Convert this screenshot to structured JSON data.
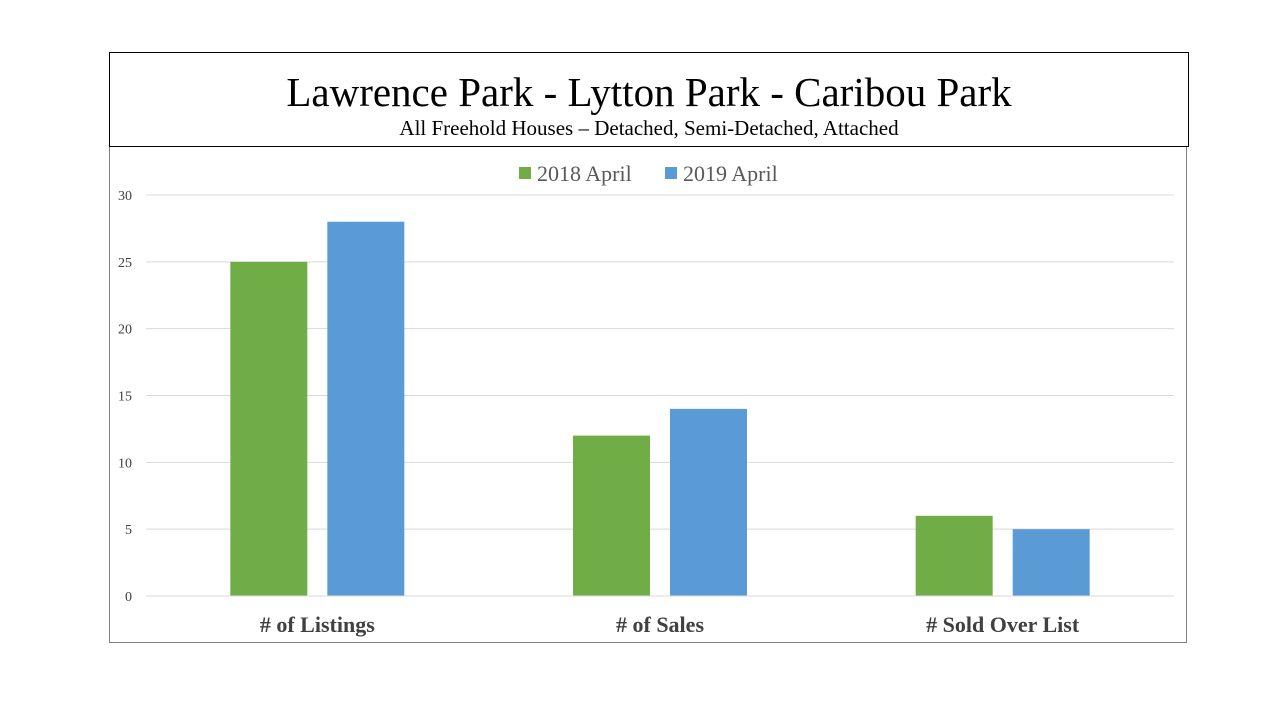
{
  "chart_data": {
    "type": "bar",
    "title": "Lawrence Park - Lytton Park - Caribou Park",
    "subtitle": "All Freehold Houses – Detached, Semi-Detached, Attached",
    "categories": [
      "# of Listings",
      "# of Sales",
      "# Sold Over List"
    ],
    "series": [
      {
        "name": "2018 April",
        "color": "#70ad47",
        "values": [
          25,
          12,
          6
        ]
      },
      {
        "name": "2019 April",
        "color": "#5b9bd5",
        "values": [
          28,
          14,
          5
        ]
      }
    ],
    "ylim": [
      0,
      30
    ],
    "yticks": [
      0,
      5,
      10,
      15,
      20,
      25,
      30
    ],
    "grid": true,
    "legend": "top-center"
  }
}
